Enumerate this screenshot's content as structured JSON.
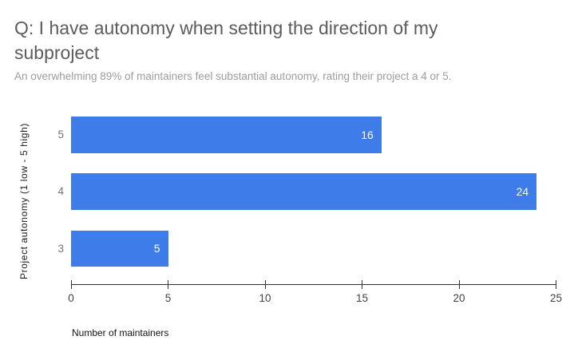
{
  "header": {
    "title": "Q: I have autonomy when setting the direction of my subproject",
    "subtitle": "An overwhelming 89% of maintainers feel substantial autonomy, rating their project a 4 or 5."
  },
  "chart_data": {
    "type": "bar",
    "orientation": "horizontal",
    "title": "Q: I have autonomy when setting the direction of my subproject",
    "subtitle": "An overwhelming 89% of maintainers feel substantial autonomy, rating their project a 4 or 5.",
    "categories": [
      "5",
      "4",
      "3"
    ],
    "values": [
      16,
      24,
      5
    ],
    "xlabel": "Number of maintainers",
    "ylabel": "Project autonomy (1 low - 5 high)",
    "xlim": [
      0,
      25
    ],
    "x_ticks": [
      0,
      5,
      10,
      15,
      20,
      25
    ],
    "grid": false,
    "legend": "none",
    "bar_color": "#3d7ce9",
    "value_label_color": "#ffffff",
    "axis_line_color": "#333333",
    "tick_label_color": "#424242",
    "category_label_color": "#757575",
    "title_color": "#5c5c5c",
    "subtitle_color": "#9c9c9c"
  }
}
